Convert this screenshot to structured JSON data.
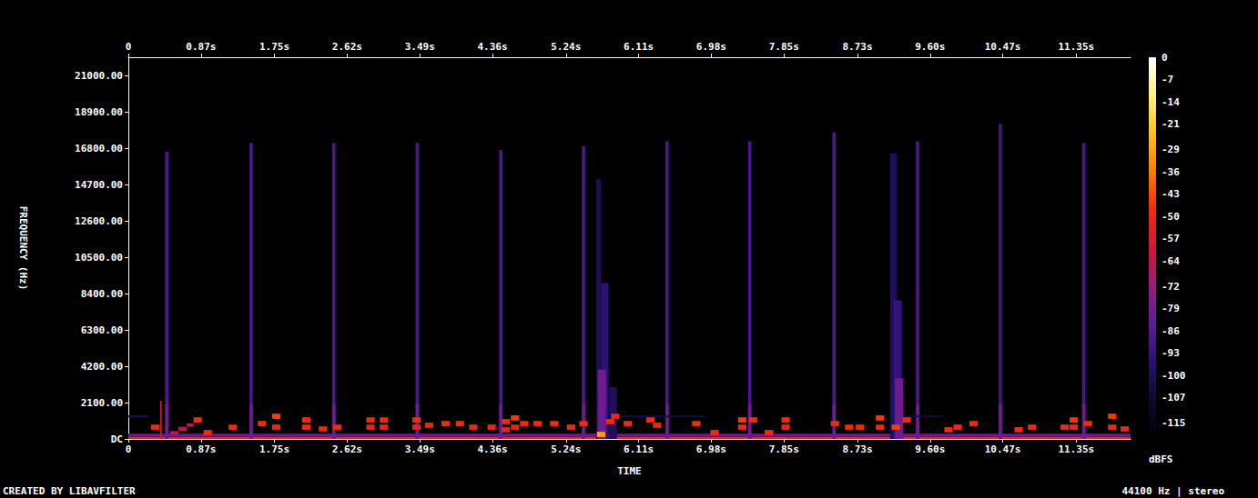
{
  "chart_data": {
    "type": "heatmap",
    "x_label": "TIME",
    "y_label": "FREQUENCY (Hz)",
    "xlim": [
      0,
      12
    ],
    "xticks": [
      0,
      {
        "value": 0.87,
        "label": "0.87s"
      },
      {
        "value": 1.75,
        "label": "1.75s"
      },
      {
        "value": 2.62,
        "label": "2.62s"
      },
      {
        "value": 3.49,
        "label": "3.49s"
      },
      {
        "value": 4.36,
        "label": "4.36s"
      },
      {
        "value": 5.24,
        "label": "5.24s"
      },
      {
        "value": 6.11,
        "label": "6.11s"
      },
      {
        "value": 6.98,
        "label": "6.98s"
      },
      {
        "value": 7.85,
        "label": "7.85s"
      },
      {
        "value": 8.73,
        "label": "8.73s"
      },
      {
        "value": 9.6,
        "label": "9.60s"
      },
      {
        "value": 10.47,
        "label": "10.47s"
      },
      {
        "value": 11.35,
        "label": "11.35s"
      }
    ],
    "ylim": [
      0,
      22050
    ],
    "yticks": [
      {
        "value": 0,
        "label": "DC"
      },
      {
        "value": 2100,
        "label": "2100.00"
      },
      {
        "value": 4200,
        "label": "4200.00"
      },
      {
        "value": 6300,
        "label": "6300.00"
      },
      {
        "value": 8400,
        "label": "8400.00"
      },
      {
        "value": 10500,
        "label": "10500.00"
      },
      {
        "value": 12600,
        "label": "12600.00"
      },
      {
        "value": 14700,
        "label": "14700.00"
      },
      {
        "value": 16800,
        "label": "16800.00"
      },
      {
        "value": 18900,
        "label": "18900.00"
      },
      {
        "value": 21000,
        "label": "21000.00"
      }
    ],
    "colorbar": {
      "label": "dBFS",
      "range": [
        -120,
        0
      ],
      "ticks": [
        0,
        -7,
        -14,
        -21,
        -29,
        -36,
        -43,
        -50,
        -57,
        -64,
        -72,
        -79,
        -86,
        -93,
        -100,
        -107,
        -115
      ]
    },
    "credit": "CREATED BY LIBAVFILTER",
    "sample_info": "44100 Hz | stereo",
    "cells": [
      [
        0,
        12,
        0,
        120,
        -50
      ],
      [
        0,
        12,
        120,
        300,
        -80
      ],
      [
        0.44,
        0.48,
        0,
        16600,
        -88
      ],
      [
        0.44,
        0.48,
        0,
        2000,
        -80
      ],
      [
        1.45,
        1.49,
        0,
        17100,
        -88
      ],
      [
        1.45,
        1.49,
        0,
        2000,
        -80
      ],
      [
        2.44,
        2.48,
        0,
        17100,
        -88
      ],
      [
        2.44,
        2.48,
        0,
        2000,
        -80
      ],
      [
        3.44,
        3.48,
        0,
        17100,
        -88
      ],
      [
        3.44,
        3.48,
        0,
        2000,
        -80
      ],
      [
        4.44,
        4.48,
        0,
        16700,
        -88
      ],
      [
        4.44,
        4.48,
        0,
        2000,
        -80
      ],
      [
        5.43,
        5.47,
        0,
        16900,
        -88
      ],
      [
        5.43,
        5.47,
        0,
        2000,
        -80
      ],
      [
        6.43,
        6.47,
        0,
        17200,
        -88
      ],
      [
        6.43,
        6.47,
        0,
        2000,
        -80
      ],
      [
        7.42,
        7.46,
        0,
        17200,
        -88
      ],
      [
        7.42,
        7.46,
        0,
        2000,
        -80
      ],
      [
        8.43,
        8.47,
        0,
        17700,
        -88
      ],
      [
        8.43,
        8.47,
        0,
        2000,
        -80
      ],
      [
        9.43,
        9.47,
        0,
        17200,
        -88
      ],
      [
        9.43,
        9.47,
        0,
        2000,
        -80
      ],
      [
        10.42,
        10.46,
        0,
        18200,
        -90
      ],
      [
        10.42,
        10.46,
        0,
        2000,
        -80
      ],
      [
        11.42,
        11.46,
        0,
        17100,
        -88
      ],
      [
        11.42,
        11.46,
        0,
        2000,
        -80
      ],
      [
        5.6,
        5.66,
        0,
        15000,
        -100
      ],
      [
        5.66,
        5.75,
        0,
        9000,
        -95
      ],
      [
        5.62,
        5.72,
        0,
        4000,
        -80
      ],
      [
        5.75,
        5.85,
        0,
        3000,
        -100
      ],
      [
        9.12,
        9.2,
        0,
        16500,
        -100
      ],
      [
        9.16,
        9.26,
        0,
        8000,
        -93
      ],
      [
        9.18,
        9.28,
        0,
        3500,
        -80
      ],
      [
        0,
        0.24,
        1250,
        1350,
        -100
      ],
      [
        5.75,
        6.9,
        1250,
        1350,
        -105
      ],
      [
        9.3,
        9.75,
        1250,
        1350,
        -105
      ],
      [
        0.38,
        0.4,
        0,
        2200,
        -60
      ],
      [
        0.5,
        0.6,
        250,
        450,
        -65
      ],
      [
        0.6,
        0.7,
        450,
        700,
        -65
      ],
      [
        0.7,
        0.78,
        700,
        900,
        -65
      ],
      [
        0.27,
        0.37,
        530,
        830,
        -48
      ],
      [
        0.78,
        0.88,
        950,
        1250,
        -48
      ],
      [
        0.9,
        1.0,
        220,
        520,
        -48
      ],
      [
        1.2,
        1.3,
        530,
        830,
        -48
      ],
      [
        1.55,
        1.65,
        740,
        1040,
        -48
      ],
      [
        1.72,
        1.82,
        1160,
        1460,
        -45
      ],
      [
        1.72,
        1.82,
        530,
        830,
        -50
      ],
      [
        2.08,
        2.18,
        950,
        1250,
        -48
      ],
      [
        2.08,
        2.18,
        530,
        830,
        -50
      ],
      [
        2.28,
        2.38,
        430,
        730,
        -50
      ],
      [
        2.45,
        2.55,
        530,
        830,
        -48
      ],
      [
        2.85,
        2.95,
        950,
        1250,
        -48
      ],
      [
        2.85,
        2.95,
        530,
        830,
        -52
      ],
      [
        3.01,
        3.11,
        950,
        1250,
        -48
      ],
      [
        3.01,
        3.11,
        530,
        830,
        -52
      ],
      [
        3.4,
        3.5,
        950,
        1250,
        -48
      ],
      [
        3.4,
        3.5,
        530,
        830,
        -52
      ],
      [
        3.55,
        3.65,
        640,
        940,
        -50
      ],
      [
        3.75,
        3.85,
        740,
        1040,
        -48
      ],
      [
        3.92,
        4.02,
        740,
        1040,
        -48
      ],
      [
        4.08,
        4.18,
        530,
        830,
        -50
      ],
      [
        4.3,
        4.4,
        530,
        830,
        -50
      ],
      [
        4.47,
        4.57,
        850,
        1150,
        -48
      ],
      [
        4.47,
        4.57,
        380,
        680,
        -52
      ],
      [
        4.58,
        4.68,
        1060,
        1360,
        -46
      ],
      [
        4.58,
        4.68,
        530,
        830,
        -52
      ],
      [
        4.69,
        4.79,
        740,
        1040,
        -48
      ],
      [
        4.85,
        4.95,
        740,
        1040,
        -48
      ],
      [
        5.05,
        5.15,
        740,
        1040,
        -48
      ],
      [
        5.25,
        5.35,
        530,
        830,
        -50
      ],
      [
        5.4,
        5.5,
        740,
        1040,
        -48
      ],
      [
        5.61,
        5.71,
        110,
        410,
        -30
      ],
      [
        5.72,
        5.82,
        850,
        1150,
        -48
      ],
      [
        5.78,
        5.88,
        1160,
        1460,
        -50
      ],
      [
        5.93,
        6.03,
        740,
        1040,
        -48
      ],
      [
        6.2,
        6.3,
        950,
        1250,
        -48
      ],
      [
        6.28,
        6.38,
        640,
        940,
        -50
      ],
      [
        6.75,
        6.85,
        740,
        1040,
        -48
      ],
      [
        6.97,
        7.07,
        220,
        520,
        -48
      ],
      [
        7.3,
        7.4,
        950,
        1250,
        -46
      ],
      [
        7.3,
        7.4,
        530,
        830,
        -50
      ],
      [
        7.43,
        7.53,
        950,
        1250,
        -48
      ],
      [
        7.62,
        7.72,
        220,
        520,
        -48
      ],
      [
        7.82,
        7.92,
        950,
        1250,
        -48
      ],
      [
        7.82,
        7.92,
        530,
        830,
        -52
      ],
      [
        8.41,
        8.51,
        740,
        1040,
        -48
      ],
      [
        8.58,
        8.68,
        530,
        830,
        -48
      ],
      [
        8.71,
        8.81,
        530,
        830,
        -48
      ],
      [
        8.95,
        9.05,
        1060,
        1360,
        -46
      ],
      [
        8.95,
        9.05,
        530,
        830,
        -50
      ],
      [
        9.14,
        9.24,
        530,
        830,
        -45
      ],
      [
        9.27,
        9.37,
        950,
        1250,
        -48
      ],
      [
        9.77,
        9.87,
        380,
        680,
        -48
      ],
      [
        9.88,
        9.98,
        530,
        830,
        -48
      ],
      [
        10.07,
        10.17,
        740,
        1040,
        -48
      ],
      [
        10.61,
        10.71,
        380,
        680,
        -48
      ],
      [
        10.77,
        10.87,
        530,
        830,
        -48
      ],
      [
        11.16,
        11.26,
        530,
        830,
        -48
      ],
      [
        11.27,
        11.37,
        950,
        1250,
        -46
      ],
      [
        11.27,
        11.37,
        530,
        830,
        -50
      ],
      [
        11.44,
        11.54,
        740,
        1040,
        -48
      ],
      [
        11.73,
        11.83,
        1160,
        1460,
        -46
      ],
      [
        11.73,
        11.83,
        530,
        830,
        -50
      ],
      [
        11.88,
        11.98,
        430,
        730,
        -50
      ]
    ]
  }
}
